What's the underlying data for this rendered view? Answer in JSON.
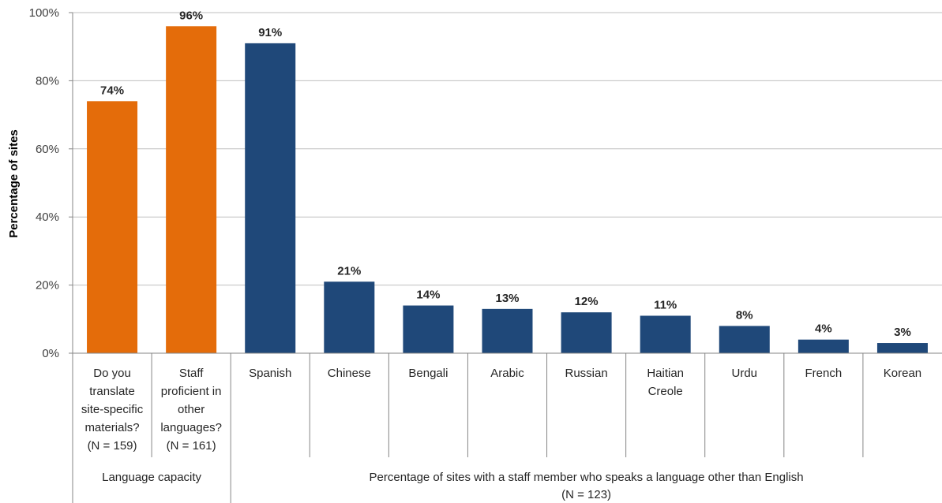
{
  "chart_data": {
    "type": "bar",
    "ylabel": "Percentage of sites",
    "ylim": [
      0,
      100
    ],
    "y_ticks": [
      "0%",
      "20%",
      "40%",
      "60%",
      "80%",
      "100%"
    ],
    "grid": true,
    "categories": [
      [
        "Do you",
        "translate",
        "site-specific",
        "materials?",
        "(N = 159)"
      ],
      [
        "Staff",
        "proficient in",
        "other",
        "languages?",
        "(N = 161)"
      ],
      [
        "Spanish"
      ],
      [
        "Chinese"
      ],
      [
        "Bengali"
      ],
      [
        "Arabic"
      ],
      [
        "Russian"
      ],
      [
        "Haitian",
        "Creole"
      ],
      [
        "Urdu"
      ],
      [
        "French"
      ],
      [
        "Korean"
      ]
    ],
    "values": [
      74,
      96,
      91,
      21,
      14,
      13,
      12,
      11,
      8,
      4,
      3
    ],
    "data_labels": [
      "74%",
      "96%",
      "91%",
      "21%",
      "14%",
      "13%",
      "12%",
      "11%",
      "8%",
      "4%",
      "3%"
    ],
    "groups": [
      {
        "label": [
          "Language capacity"
        ],
        "start": 0,
        "end": 1,
        "color": "#E46C0A"
      },
      {
        "label": [
          "Percentage of sites with a staff member who speaks a language other than English",
          "(N = 123)"
        ],
        "start": 2,
        "end": 10,
        "color": "#1F4879"
      }
    ]
  }
}
